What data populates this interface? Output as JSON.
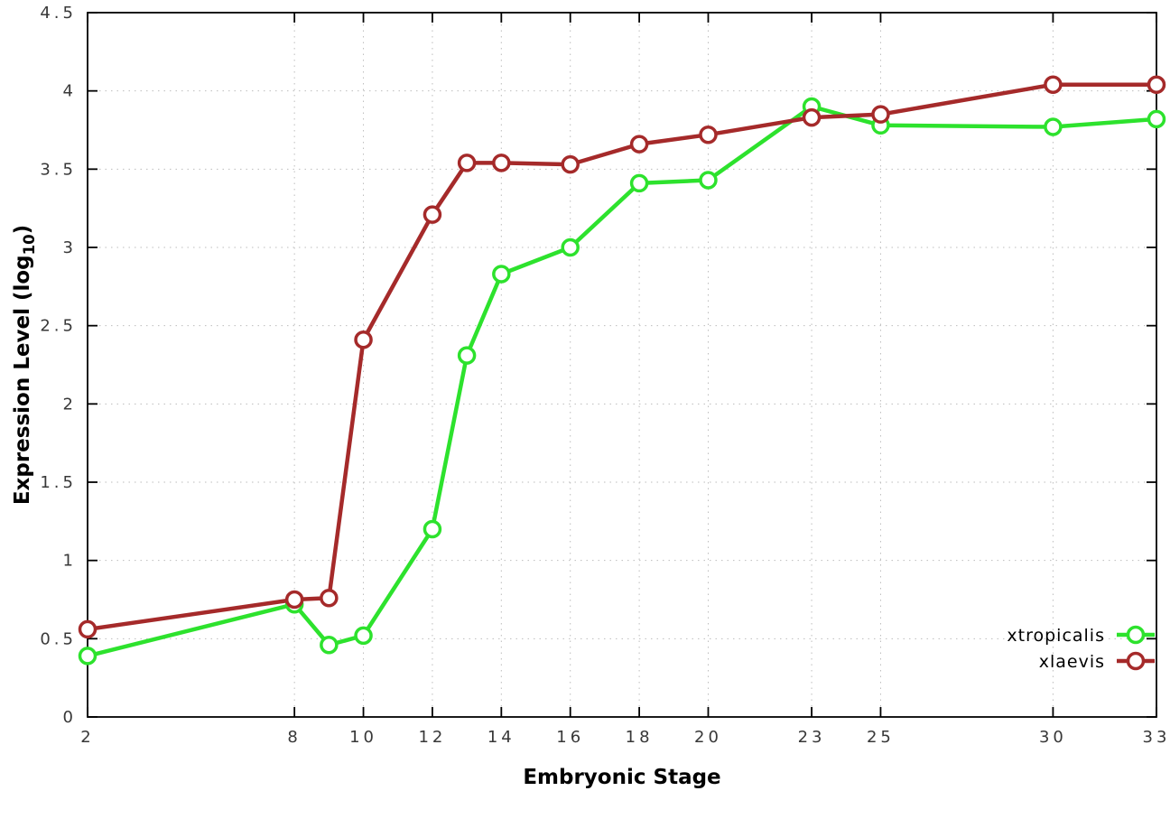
{
  "chart_data": {
    "type": "line",
    "title": "",
    "xlabel": "Embryonic Stage",
    "ylabel": "Expression Level (log10)",
    "ylabel_parts": {
      "main": "Expression Level (log",
      "sub": "10",
      "end": ")"
    },
    "xlim": [
      2,
      33
    ],
    "ylim": [
      0,
      4.5
    ],
    "x_ticks": [
      2,
      8,
      10,
      12,
      14,
      16,
      18,
      20,
      23,
      25,
      30,
      33
    ],
    "y_ticks": [
      0,
      0.5,
      1,
      1.5,
      2,
      2.5,
      3,
      3.5,
      4,
      4.5
    ],
    "grid": true,
    "grid_style": "dotted",
    "legend_position": "bottom-right",
    "background_color": "#ffffff",
    "border_color": "#000000",
    "x": [
      2,
      8,
      9,
      10,
      12,
      13,
      14,
      16,
      18,
      20,
      23,
      25,
      30,
      33
    ],
    "series": [
      {
        "name": "xtropicalis",
        "color": "#2de22d",
        "marker": "open-circle",
        "values": [
          0.39,
          0.72,
          0.46,
          0.52,
          1.2,
          2.31,
          2.83,
          3.0,
          3.41,
          3.43,
          3.9,
          3.78,
          3.77,
          3.82
        ]
      },
      {
        "name": "xlaevis",
        "color": "#a52a2a",
        "marker": "open-circle",
        "values": [
          0.56,
          0.75,
          0.76,
          2.41,
          3.21,
          3.54,
          3.54,
          3.53,
          3.66,
          3.72,
          3.83,
          3.85,
          4.04,
          4.04
        ]
      }
    ]
  }
}
